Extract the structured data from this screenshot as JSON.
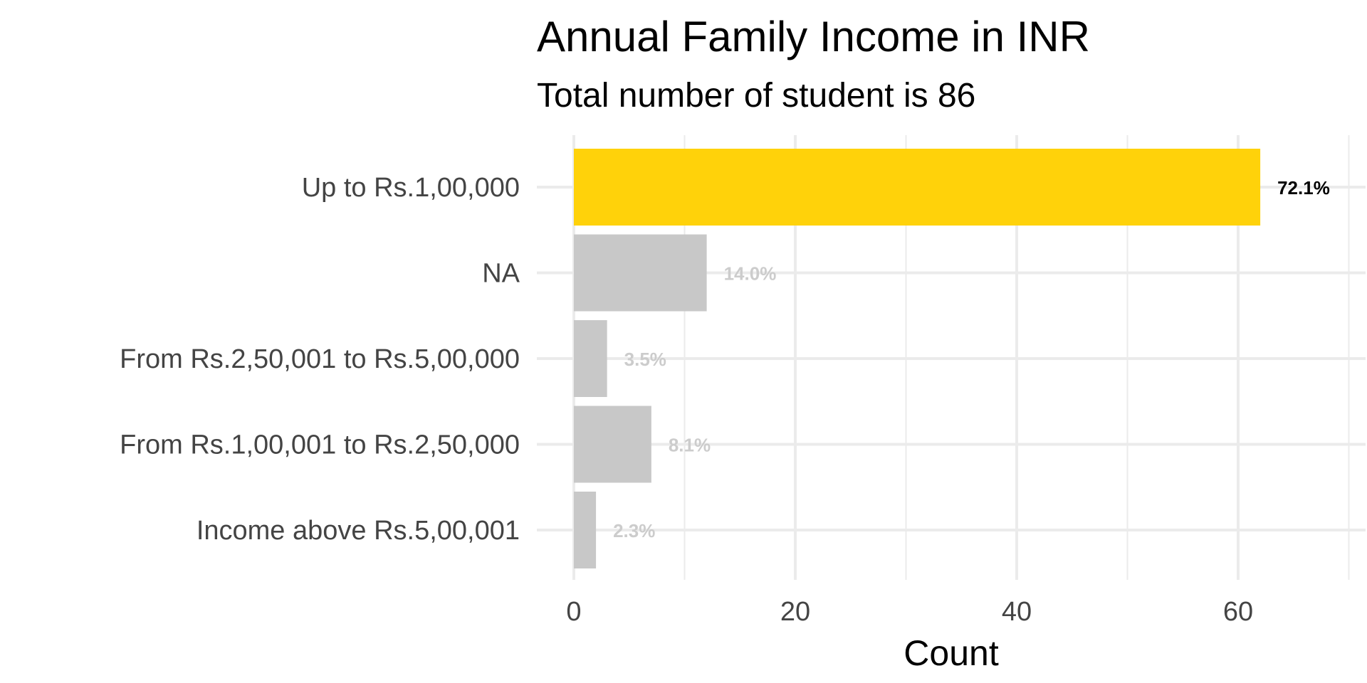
{
  "chart_data": {
    "type": "bar",
    "orientation": "horizontal",
    "title": "Annual Family Income in INR",
    "subtitle": "Total number of student is 86",
    "xlabel": "Count",
    "ylabel": "",
    "xlim": [
      0,
      70
    ],
    "x_ticks": [
      0,
      20,
      40,
      60
    ],
    "x_minor_ticks": [
      10,
      30,
      50,
      70
    ],
    "grid": true,
    "legend": "none",
    "categories": [
      "Up to Rs.1,00,000",
      "NA",
      "From Rs.2,50,001 to Rs.5,00,000",
      "From Rs.1,00,001 to Rs.2,50,000",
      "Income above Rs.5,00,001"
    ],
    "values": [
      62,
      12,
      3,
      7,
      2
    ],
    "labels": [
      "72.1%",
      "14.0%",
      "3.5%",
      "8.1%",
      "2.3%"
    ],
    "highlight_index": 0,
    "colors": {
      "highlight": "#FFD20A",
      "default": "#C8C8C8",
      "highlight_label": "#000000",
      "default_label": "#CCCCCC",
      "grid": "#EBEBEB"
    }
  }
}
